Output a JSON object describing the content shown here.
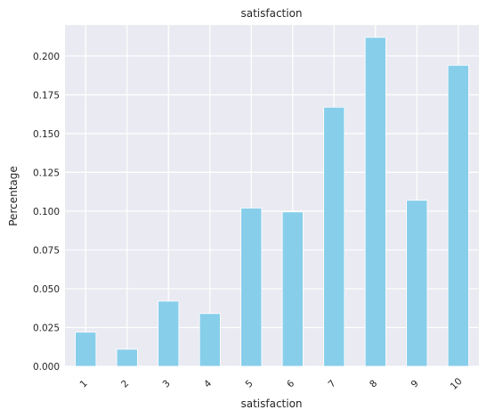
{
  "chart_data": {
    "type": "bar",
    "title": "satisfaction",
    "xlabel": "satisfaction",
    "ylabel": "Percentage",
    "categories": [
      "1",
      "2",
      "3",
      "4",
      "5",
      "6",
      "7",
      "8",
      "9",
      "10"
    ],
    "values": [
      0.022,
      0.011,
      0.042,
      0.034,
      0.102,
      0.0995,
      0.167,
      0.212,
      0.107,
      0.194
    ],
    "ylim": [
      0,
      0.22
    ],
    "yticks": [
      "0.000",
      "0.025",
      "0.050",
      "0.075",
      "0.100",
      "0.125",
      "0.150",
      "0.175",
      "0.200"
    ],
    "grid": true,
    "colors": {
      "bar": "#87CEEB",
      "background": "#EAEAF2",
      "grid": "#FFFFFF"
    }
  }
}
